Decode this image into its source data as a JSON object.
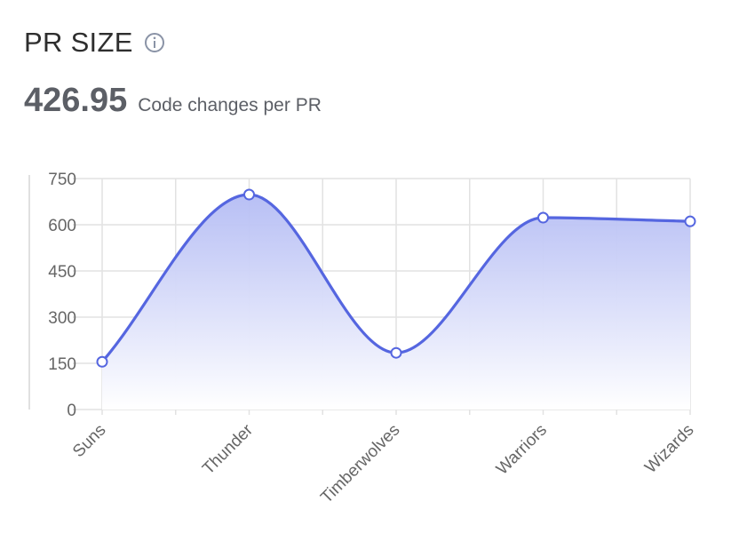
{
  "header": {
    "title": "PR SIZE",
    "info_icon": "info-circle-icon",
    "metric_value": "426.95",
    "metric_label": "Code changes per PR"
  },
  "colors": {
    "line": "#5566e0",
    "fill_top": "#b4bcf4",
    "fill_bottom": "#ffffff",
    "grid": "#e2e2e2",
    "icon": "#8a93a6"
  },
  "chart_data": {
    "type": "area",
    "categories": [
      "Suns",
      "Thunder",
      "Timberwolves",
      "Warriors",
      "Wizards"
    ],
    "values": [
      155,
      698,
      184,
      623,
      611
    ],
    "ylim": [
      0,
      750
    ],
    "yticks": [
      0,
      150,
      300,
      450,
      600,
      750
    ],
    "grid": true,
    "legend": "none",
    "smooth": true,
    "title": "",
    "xlabel": "",
    "ylabel": ""
  }
}
